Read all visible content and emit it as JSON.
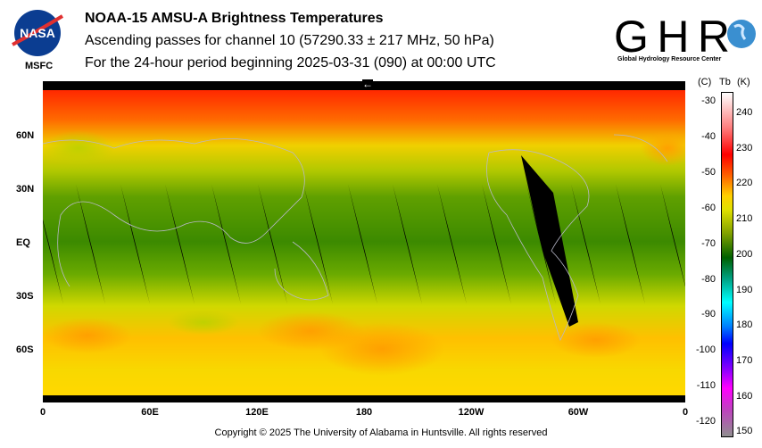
{
  "header": {
    "title": "NOAA-15 AMSU-A Brightness Temperatures",
    "subtitle": "Ascending passes for channel 10 (57290.33 ± 217 MHz, 50 hPa)",
    "period": "For the 24-hour period beginning 2025-03-31 (090) at 00:00 UTC"
  },
  "logos": {
    "nasa": "NASA",
    "msfc": "MSFC",
    "ghrc": "GHRC",
    "ghrc_full": "Global Hydrology Resource Center"
  },
  "map": {
    "lat_labels": [
      "60N",
      "30N",
      "EQ",
      "30S",
      "60S"
    ],
    "lon_labels": [
      "0",
      "60E",
      "120E",
      "180",
      "120W",
      "60W",
      "0"
    ],
    "direction_arrow": "←"
  },
  "colorbar": {
    "header_c": "(C)",
    "header_tb": "Tb",
    "header_k": "(K)",
    "celsius_ticks": [
      "-30",
      "-40",
      "-50",
      "-60",
      "-70",
      "-80",
      "-90",
      "-100",
      "-110",
      "-120"
    ],
    "kelvin_ticks": [
      "240",
      "230",
      "220",
      "210",
      "200",
      "190",
      "180",
      "170",
      "160",
      "150"
    ]
  },
  "footer": {
    "copyright": "Copyright © 2025 The University of Alabama in Huntsville.  All rights reserved"
  }
}
